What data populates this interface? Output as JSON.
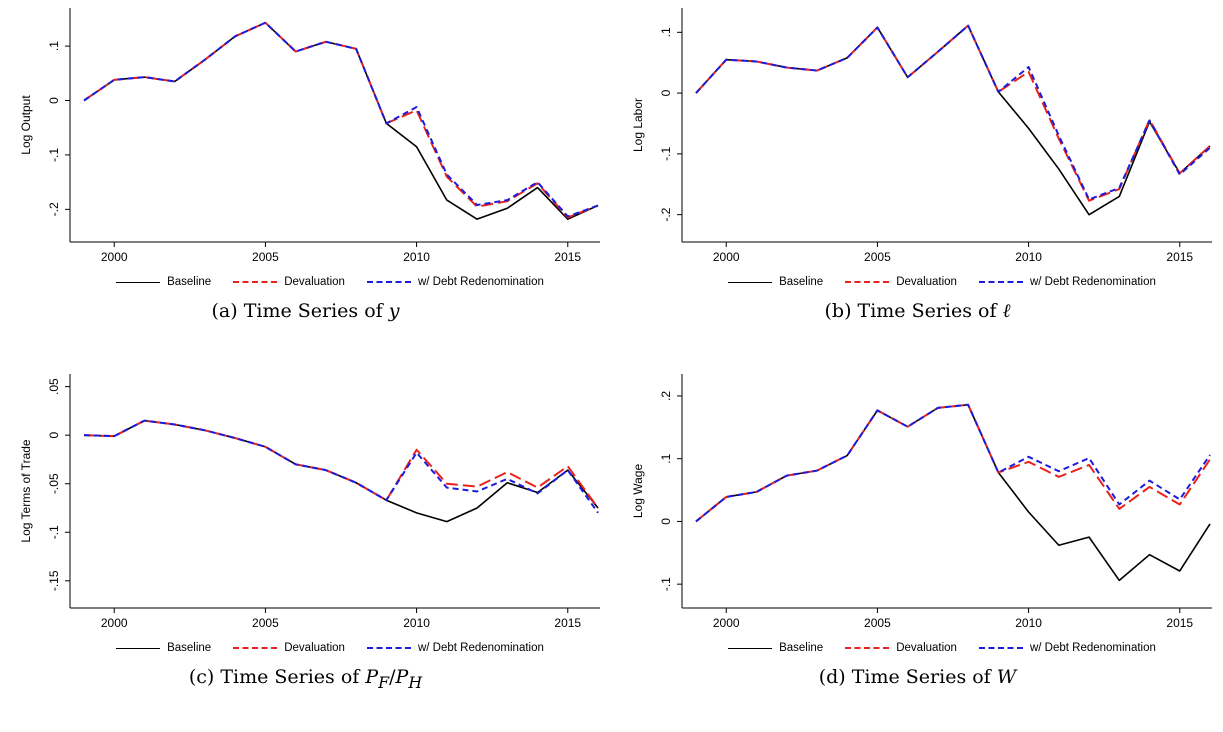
{
  "legend": {
    "baseline": "Baseline",
    "devaluation": "Devaluation",
    "redenomination": "w/ Debt Redenomination"
  },
  "colors": {
    "baseline": "#000000",
    "devaluation": "#e8221c",
    "redenomination": "#1c1cde"
  },
  "chart_data": [
    {
      "type": "line",
      "caption_prefix": "(a)  Time Series of ",
      "caption_math": "y",
      "ylabel": "Log Output",
      "x": [
        1999,
        2000,
        2001,
        2002,
        2003,
        2004,
        2005,
        2006,
        2007,
        2008,
        2009,
        2010,
        2011,
        2012,
        2013,
        2014,
        2015,
        2016
      ],
      "xlim": [
        1999,
        2016
      ],
      "xticks": [
        2000,
        2005,
        2010,
        2015
      ],
      "xtick_labels": [
        "2000",
        "2005",
        "2010",
        "2015"
      ],
      "ylim": [
        -0.26,
        0.17
      ],
      "yticks": [
        0.1,
        0,
        -0.1,
        -0.2
      ],
      "ytick_labels": [
        ".1",
        "0",
        "-.1",
        "-.2"
      ],
      "series": [
        {
          "name": "Baseline",
          "style": "baseline",
          "values": [
            0,
            0.038,
            0.043,
            0.035,
            0.075,
            0.118,
            0.143,
            0.09,
            0.108,
            0.095,
            -0.042,
            -0.085,
            -0.183,
            -0.218,
            -0.198,
            -0.16,
            -0.218,
            -0.193
          ]
        },
        {
          "name": "Devaluation",
          "style": "devaluation",
          "values": [
            0,
            0.038,
            0.043,
            0.035,
            0.075,
            0.118,
            0.143,
            0.09,
            0.108,
            0.095,
            -0.042,
            -0.018,
            -0.14,
            -0.195,
            -0.185,
            -0.152,
            -0.215,
            -0.193
          ]
        },
        {
          "name": "w/ Debt Redenomination",
          "style": "redenomination",
          "values": [
            0,
            0.038,
            0.043,
            0.035,
            0.075,
            0.118,
            0.143,
            0.09,
            0.108,
            0.095,
            -0.042,
            -0.012,
            -0.136,
            -0.192,
            -0.183,
            -0.15,
            -0.213,
            -0.193
          ]
        }
      ]
    },
    {
      "type": "line",
      "caption_prefix": "(b)  Time Series of ",
      "caption_math": "ℓ",
      "ylabel": "Log Labor",
      "x": [
        1999,
        2000,
        2001,
        2002,
        2003,
        2004,
        2005,
        2006,
        2007,
        2008,
        2009,
        2010,
        2011,
        2012,
        2013,
        2014,
        2015,
        2016
      ],
      "xlim": [
        1999,
        2016
      ],
      "xticks": [
        2000,
        2005,
        2010,
        2015
      ],
      "xtick_labels": [
        "2000",
        "2005",
        "2010",
        "2015"
      ],
      "ylim": [
        -0.245,
        0.14
      ],
      "yticks": [
        0.1,
        0,
        -0.1,
        -0.2
      ],
      "ytick_labels": [
        ".1",
        "0",
        "-.1",
        "-.2"
      ],
      "series": [
        {
          "name": "Baseline",
          "style": "baseline",
          "values": [
            0,
            0.055,
            0.052,
            0.042,
            0.037,
            0.058,
            0.108,
            0.026,
            0.068,
            0.111,
            0.002,
            -0.058,
            -0.125,
            -0.2,
            -0.17,
            -0.047,
            -0.132,
            -0.087
          ]
        },
        {
          "name": "Devaluation",
          "style": "devaluation",
          "values": [
            0,
            0.055,
            0.052,
            0.042,
            0.037,
            0.058,
            0.108,
            0.026,
            0.068,
            0.111,
            0.002,
            0.035,
            -0.075,
            -0.177,
            -0.158,
            -0.044,
            -0.132,
            -0.087
          ]
        },
        {
          "name": "w/ Debt Redenomination",
          "style": "redenomination",
          "values": [
            0,
            0.055,
            0.052,
            0.042,
            0.037,
            0.058,
            0.108,
            0.026,
            0.068,
            0.111,
            0.002,
            0.043,
            -0.07,
            -0.175,
            -0.156,
            -0.045,
            -0.134,
            -0.09
          ]
        }
      ]
    },
    {
      "type": "line",
      "caption_prefix": "(c)  Time Series of ",
      "caption_math": "P",
      "caption_sub1": "F",
      "caption_mid": "/",
      "caption_math2": "P",
      "caption_sub2": "H",
      "ylabel": "Log Terms of Trade",
      "x": [
        1999,
        2000,
        2001,
        2002,
        2003,
        2004,
        2005,
        2006,
        2007,
        2008,
        2009,
        2010,
        2011,
        2012,
        2013,
        2014,
        2015,
        2016
      ],
      "xlim": [
        1999,
        2016
      ],
      "xticks": [
        2000,
        2005,
        2010,
        2015
      ],
      "xtick_labels": [
        "2000",
        "2005",
        "2010",
        "2015"
      ],
      "ylim": [
        -0.178,
        0.063
      ],
      "yticks": [
        0.05,
        0,
        -0.05,
        -0.1,
        -0.15
      ],
      "ytick_labels": [
        ".05",
        "0",
        "-.05",
        "-.1",
        "-.15"
      ],
      "series": [
        {
          "name": "Baseline",
          "style": "baseline",
          "values": [
            0,
            -0.001,
            0.015,
            0.011,
            0.005,
            -0.003,
            -0.012,
            -0.03,
            -0.036,
            -0.049,
            -0.067,
            -0.08,
            -0.089,
            -0.075,
            -0.049,
            -0.059,
            -0.036,
            -0.075
          ]
        },
        {
          "name": "Devaluation",
          "style": "devaluation",
          "values": [
            0,
            -0.001,
            0.015,
            0.011,
            0.005,
            -0.003,
            -0.012,
            -0.03,
            -0.036,
            -0.049,
            -0.067,
            -0.015,
            -0.05,
            -0.053,
            -0.038,
            -0.054,
            -0.032,
            -0.075
          ]
        },
        {
          "name": "w/ Debt Redenomination",
          "style": "redenomination",
          "values": [
            0,
            -0.001,
            0.015,
            0.011,
            0.005,
            -0.003,
            -0.012,
            -0.03,
            -0.036,
            -0.049,
            -0.067,
            -0.018,
            -0.054,
            -0.058,
            -0.045,
            -0.06,
            -0.036,
            -0.08
          ]
        }
      ]
    },
    {
      "type": "line",
      "caption_prefix": "(d)  Time Series of ",
      "caption_math": "W",
      "ylabel": "Log Wage",
      "x": [
        1999,
        2000,
        2001,
        2002,
        2003,
        2004,
        2005,
        2006,
        2007,
        2008,
        2009,
        2010,
        2011,
        2012,
        2013,
        2014,
        2015,
        2016
      ],
      "xlim": [
        1999,
        2016
      ],
      "xticks": [
        2000,
        2005,
        2010,
        2015
      ],
      "xtick_labels": [
        "2000",
        "2005",
        "2010",
        "2015"
      ],
      "ylim": [
        -0.138,
        0.235
      ],
      "yticks": [
        0.2,
        0.1,
        0,
        -0.1
      ],
      "ytick_labels": [
        ".2",
        ".1",
        "0",
        "-.1"
      ],
      "series": [
        {
          "name": "Baseline",
          "style": "baseline",
          "values": [
            0,
            0.039,
            0.047,
            0.073,
            0.081,
            0.105,
            0.177,
            0.151,
            0.181,
            0.186,
            0.078,
            0.015,
            -0.038,
            -0.025,
            -0.094,
            -0.053,
            -0.079,
            -0.004
          ]
        },
        {
          "name": "Devaluation",
          "style": "devaluation",
          "values": [
            0,
            0.039,
            0.047,
            0.073,
            0.081,
            0.105,
            0.177,
            0.151,
            0.181,
            0.186,
            0.078,
            0.095,
            0.071,
            0.09,
            0.02,
            0.055,
            0.027,
            0.099
          ]
        },
        {
          "name": "w/ Debt Redenomination",
          "style": "redenomination",
          "values": [
            0,
            0.039,
            0.047,
            0.073,
            0.081,
            0.105,
            0.177,
            0.151,
            0.181,
            0.186,
            0.078,
            0.103,
            0.08,
            0.101,
            0.027,
            0.065,
            0.035,
            0.106
          ]
        }
      ]
    }
  ]
}
